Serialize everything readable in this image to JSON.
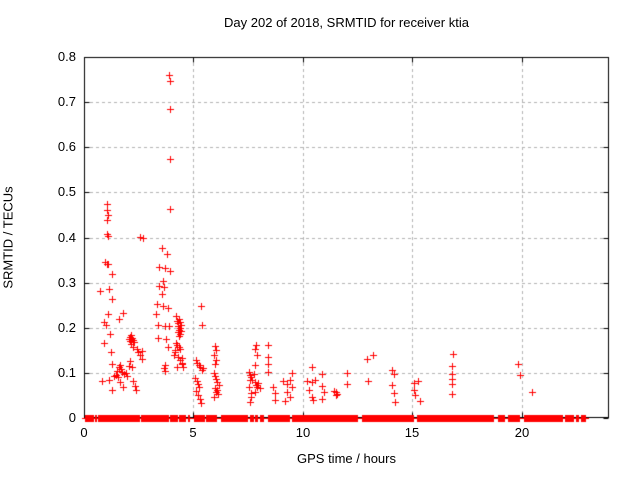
{
  "chart_data": {
    "type": "scatter",
    "title": "Day 202 of 2018, SRMTID for receiver ktia",
    "xlabel": "GPS time / hours",
    "ylabel": "SRMTID / TECUs",
    "xlim": [
      0,
      24
    ],
    "ylim": [
      0,
      0.8
    ],
    "xticks": {
      "values": [
        0,
        5,
        10,
        15,
        20
      ],
      "labels": [
        "0",
        "5",
        "10",
        "15",
        "20"
      ]
    },
    "yticks": {
      "values": [
        0,
        0.1,
        0.2,
        0.3,
        0.4,
        0.5,
        0.6,
        0.7,
        0.8
      ],
      "labels": [
        "0",
        "0.1",
        "0.2",
        "0.3",
        "0.4",
        "0.5",
        "0.6",
        "0.7",
        "0.8"
      ]
    },
    "grid": true,
    "legend_position": "none",
    "marker": {
      "shape": "plus",
      "color": "#ff0000",
      "size": 7
    },
    "grid_color": "#b3b3b3",
    "border_color": "#000000",
    "series": [
      {
        "name": "SRMTID",
        "points": [
          [
            1.07,
            0.474
          ],
          [
            1.07,
            0.461
          ],
          [
            1.08,
            0.45
          ],
          [
            1.05,
            0.439
          ],
          [
            1.05,
            0.407
          ],
          [
            1.08,
            0.404
          ],
          [
            0.98,
            0.345
          ],
          [
            1.04,
            0.342
          ],
          [
            1.1,
            0.341
          ],
          [
            1.28,
            0.32
          ],
          [
            1.15,
            0.285
          ],
          [
            0.74,
            0.281
          ],
          [
            1.3,
            0.263
          ],
          [
            1.1,
            0.231
          ],
          [
            0.9,
            0.212
          ],
          [
            1.0,
            0.206
          ],
          [
            1.2,
            0.187
          ],
          [
            0.92,
            0.166
          ],
          [
            1.25,
            0.147
          ],
          [
            1.3,
            0.12
          ],
          [
            1.15,
            0.085
          ],
          [
            0.8,
            0.081
          ],
          [
            1.3,
            0.063
          ],
          [
            1.45,
            0.096
          ],
          [
            1.38,
            0.092
          ],
          [
            1.52,
            0.105
          ],
          [
            1.6,
            0.112
          ],
          [
            1.65,
            0.117
          ],
          [
            1.7,
            0.108
          ],
          [
            1.75,
            0.102
          ],
          [
            1.82,
            0.097
          ],
          [
            1.55,
            0.09
          ],
          [
            1.65,
            0.079
          ],
          [
            1.78,
            0.068
          ],
          [
            1.9,
            0.1
          ],
          [
            1.95,
            0.094
          ],
          [
            1.6,
            0.219
          ],
          [
            1.78,
            0.232
          ],
          [
            2.05,
            0.175
          ],
          [
            2.1,
            0.18
          ],
          [
            2.1,
            0.17
          ],
          [
            2.15,
            0.185
          ],
          [
            2.15,
            0.163
          ],
          [
            2.2,
            0.177
          ],
          [
            2.22,
            0.157
          ],
          [
            2.25,
            0.172
          ],
          [
            2.3,
            0.168
          ],
          [
            2.4,
            0.154
          ],
          [
            2.45,
            0.147
          ],
          [
            2.55,
            0.139
          ],
          [
            2.1,
            0.126
          ],
          [
            2.65,
            0.149
          ],
          [
            2.65,
            0.131
          ],
          [
            2.25,
            0.083
          ],
          [
            2.32,
            0.072
          ],
          [
            2.38,
            0.061
          ],
          [
            2.05,
            0.116
          ],
          [
            2.2,
            0.114
          ],
          [
            2.56,
            0.401
          ],
          [
            2.7,
            0.399
          ],
          [
            3.9,
            0.76
          ],
          [
            3.92,
            0.747
          ],
          [
            3.95,
            0.685
          ],
          [
            3.93,
            0.574
          ],
          [
            3.93,
            0.463
          ],
          [
            3.55,
            0.377
          ],
          [
            3.78,
            0.364
          ],
          [
            3.42,
            0.335
          ],
          [
            3.7,
            0.333
          ],
          [
            3.92,
            0.326
          ],
          [
            3.6,
            0.304
          ],
          [
            3.45,
            0.293
          ],
          [
            3.65,
            0.291
          ],
          [
            3.55,
            0.275
          ],
          [
            3.32,
            0.253
          ],
          [
            3.6,
            0.249
          ],
          [
            3.82,
            0.244
          ],
          [
            3.28,
            0.23
          ],
          [
            3.4,
            0.205
          ],
          [
            3.72,
            0.204
          ],
          [
            3.9,
            0.203
          ],
          [
            3.4,
            0.178
          ],
          [
            3.75,
            0.176
          ],
          [
            3.85,
            0.157
          ],
          [
            3.7,
            0.117
          ],
          [
            3.65,
            0.11
          ],
          [
            3.7,
            0.105
          ],
          [
            4.2,
            0.225
          ],
          [
            4.35,
            0.22
          ],
          [
            4.25,
            0.215
          ],
          [
            4.3,
            0.21
          ],
          [
            4.37,
            0.212
          ],
          [
            4.42,
            0.207
          ],
          [
            4.3,
            0.203
          ],
          [
            4.4,
            0.2
          ],
          [
            4.35,
            0.196
          ],
          [
            4.45,
            0.193
          ],
          [
            4.28,
            0.19
          ],
          [
            4.4,
            0.186
          ],
          [
            4.35,
            0.181
          ],
          [
            4.2,
            0.166
          ],
          [
            4.25,
            0.162
          ],
          [
            4.32,
            0.158
          ],
          [
            4.38,
            0.154
          ],
          [
            4.18,
            0.15
          ],
          [
            4.1,
            0.14
          ],
          [
            4.15,
            0.146
          ],
          [
            4.3,
            0.135
          ],
          [
            4.4,
            0.129
          ],
          [
            4.5,
            0.122
          ],
          [
            4.25,
            0.113
          ],
          [
            4.48,
            0.133
          ],
          [
            4.48,
            0.12
          ],
          [
            4.52,
            0.112
          ],
          [
            5.35,
            0.249
          ],
          [
            5.4,
            0.206
          ],
          [
            5.1,
            0.128
          ],
          [
            5.15,
            0.122
          ],
          [
            5.25,
            0.117
          ],
          [
            5.3,
            0.113
          ],
          [
            5.38,
            0.106
          ],
          [
            5.45,
            0.111
          ],
          [
            5.08,
            0.089
          ],
          [
            5.15,
            0.081
          ],
          [
            5.2,
            0.075
          ],
          [
            5.25,
            0.069
          ],
          [
            5.1,
            0.06
          ],
          [
            5.2,
            0.051
          ],
          [
            5.3,
            0.042
          ],
          [
            5.35,
            0.034
          ],
          [
            6.0,
            0.159
          ],
          [
            6.05,
            0.15
          ],
          [
            5.95,
            0.139
          ],
          [
            6.05,
            0.128
          ],
          [
            6.0,
            0.119
          ],
          [
            5.95,
            0.1
          ],
          [
            6.0,
            0.092
          ],
          [
            6.05,
            0.086
          ],
          [
            6.1,
            0.08
          ],
          [
            6.15,
            0.073
          ],
          [
            6.0,
            0.067
          ],
          [
            6.1,
            0.062
          ],
          [
            6.05,
            0.057
          ],
          [
            6.12,
            0.053
          ],
          [
            5.95,
            0.046
          ],
          [
            7.85,
            0.161
          ],
          [
            7.8,
            0.152
          ],
          [
            7.9,
            0.139
          ],
          [
            7.8,
            0.117
          ],
          [
            7.55,
            0.102
          ],
          [
            7.6,
            0.095
          ],
          [
            7.65,
            0.09
          ],
          [
            7.7,
            0.085
          ],
          [
            7.75,
            0.097
          ],
          [
            7.8,
            0.079
          ],
          [
            7.85,
            0.073
          ],
          [
            7.6,
            0.084
          ],
          [
            7.55,
            0.069
          ],
          [
            7.9,
            0.069
          ],
          [
            7.8,
            0.058
          ],
          [
            7.62,
            0.055
          ],
          [
            7.65,
            0.046
          ],
          [
            7.6,
            0.035
          ],
          [
            7.95,
            0.077
          ],
          [
            8.05,
            0.067
          ],
          [
            8.4,
            0.162
          ],
          [
            8.4,
            0.136
          ],
          [
            8.4,
            0.12
          ],
          [
            8.4,
            0.103
          ],
          [
            8.65,
            0.069
          ],
          [
            8.75,
            0.055
          ],
          [
            8.75,
            0.039
          ],
          [
            9.5,
            0.1
          ],
          [
            9.1,
            0.083
          ],
          [
            9.3,
            0.076
          ],
          [
            9.4,
            0.085
          ],
          [
            9.5,
            0.068
          ],
          [
            9.3,
            0.057
          ],
          [
            9.4,
            0.046
          ],
          [
            9.2,
            0.037
          ],
          [
            10.4,
            0.112
          ],
          [
            10.2,
            0.083
          ],
          [
            10.4,
            0.079
          ],
          [
            10.55,
            0.085
          ],
          [
            10.3,
            0.061
          ],
          [
            10.4,
            0.046
          ],
          [
            10.45,
            0.039
          ],
          [
            10.9,
            0.098
          ],
          [
            10.9,
            0.072
          ],
          [
            10.95,
            0.057
          ],
          [
            10.9,
            0.043
          ],
          [
            11.45,
            0.06
          ],
          [
            11.5,
            0.057
          ],
          [
            11.55,
            0.054
          ],
          [
            11.5,
            0.05
          ],
          [
            12.0,
            0.1
          ],
          [
            12.0,
            0.076
          ],
          [
            12.95,
            0.131
          ],
          [
            13.2,
            0.14
          ],
          [
            13.0,
            0.083
          ],
          [
            14.1,
            0.107
          ],
          [
            14.15,
            0.098
          ],
          [
            14.1,
            0.074
          ],
          [
            14.15,
            0.056
          ],
          [
            14.2,
            0.036
          ],
          [
            15.1,
            0.078
          ],
          [
            15.25,
            0.083
          ],
          [
            15.1,
            0.063
          ],
          [
            15.15,
            0.05
          ],
          [
            15.35,
            0.037
          ],
          [
            16.85,
            0.142
          ],
          [
            16.8,
            0.116
          ],
          [
            16.8,
            0.098
          ],
          [
            16.8,
            0.087
          ],
          [
            16.8,
            0.076
          ],
          [
            16.8,
            0.054
          ],
          [
            19.85,
            0.12
          ],
          [
            19.95,
            0.096
          ],
          [
            20.5,
            0.057
          ]
        ]
      }
    ],
    "zero_band": {
      "value": 0,
      "spacing": 0.04,
      "segments": [
        [
          0.05,
          0.18
        ],
        [
          0.24,
          0.42
        ],
        [
          0.5,
          0.56
        ],
        [
          0.62,
          2.52
        ],
        [
          2.62,
          3.82
        ],
        [
          3.94,
          4.28
        ],
        [
          4.34,
          4.62
        ],
        [
          4.74,
          4.84
        ],
        [
          5.02,
          5.5
        ],
        [
          5.58,
          6.04
        ],
        [
          6.28,
          7.46
        ],
        [
          7.6,
          7.72
        ],
        [
          7.8,
          7.94
        ],
        [
          8.04,
          8.2
        ],
        [
          8.4,
          9.38
        ],
        [
          9.5,
          12.52
        ],
        [
          12.7,
          15.06
        ],
        [
          15.24,
          18.68
        ],
        [
          18.92,
          19.22
        ],
        [
          19.38,
          19.92
        ],
        [
          20.1,
          21.86
        ],
        [
          22.0,
          22.36
        ],
        [
          22.48,
          22.6
        ],
        [
          22.7,
          22.92
        ]
      ]
    }
  }
}
